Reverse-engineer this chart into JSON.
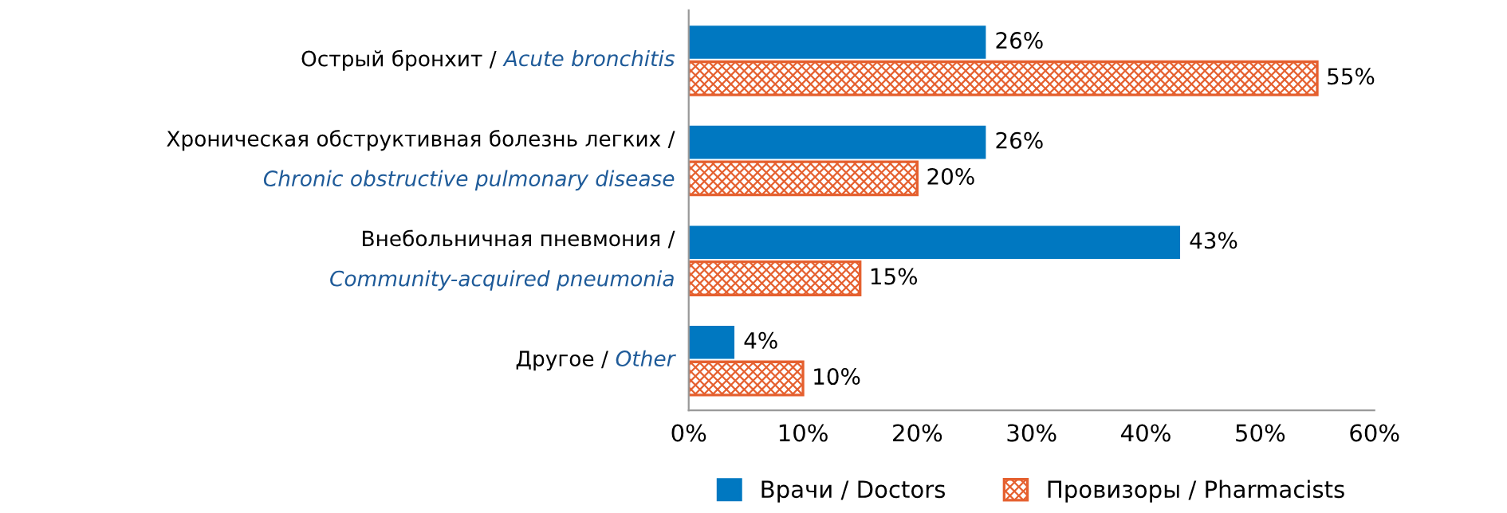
{
  "chart_data": {
    "type": "bar",
    "orientation": "horizontal",
    "categories": [
      "Острый бронхит / Acute bronchitis",
      "Хроническая обструктивная болезнь легких / Chronic obstructive pulmonary disease",
      "Внебольничная пневмония / Community-acquired pneumonia",
      "Другое / Other"
    ],
    "series": [
      {
        "name": "Врачи / Doctors",
        "color": "#0078c1",
        "values": [
          26,
          26,
          43,
          4
        ],
        "value_labels": [
          "26%",
          "26%",
          "43%",
          "4%"
        ]
      },
      {
        "name": "Провизоры / Pharmacists",
        "color": "#e5602f",
        "values": [
          55,
          20,
          15,
          10
        ],
        "value_labels": [
          "55%",
          "20%",
          "15%",
          "10%"
        ]
      }
    ],
    "xlim": [
      0,
      60
    ],
    "xticks": [
      {
        "value": 0,
        "label": "0%"
      },
      {
        "value": 10,
        "label": "10%"
      },
      {
        "value": 20,
        "label": "20%"
      },
      {
        "value": 30,
        "label": "30%"
      },
      {
        "value": 40,
        "label": "40%"
      },
      {
        "value": 50,
        "label": "50%"
      },
      {
        "value": 60,
        "label": "60%"
      }
    ],
    "grid": false,
    "legend": "bottom"
  }
}
